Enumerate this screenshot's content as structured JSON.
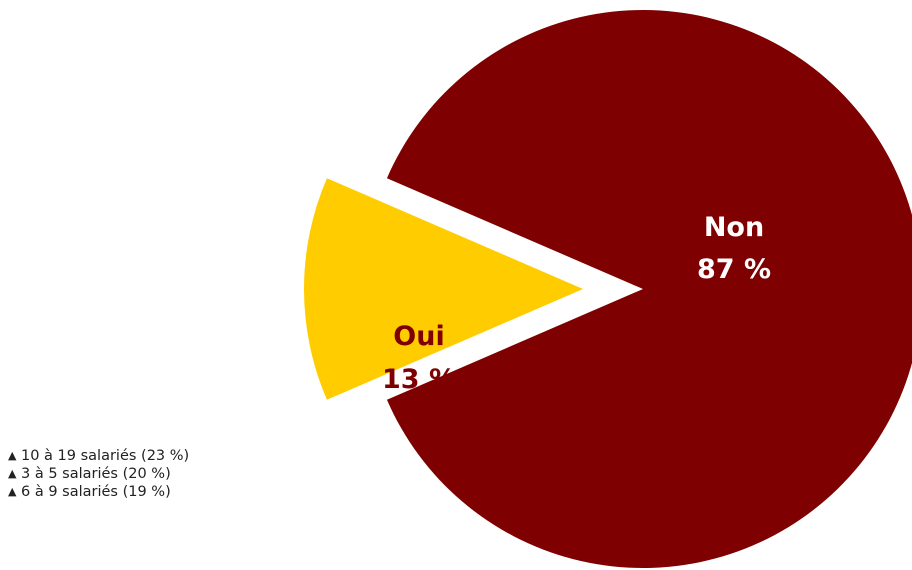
{
  "chart_data": {
    "type": "pie",
    "title": "",
    "slices": [
      {
        "label": "Non",
        "value": 87,
        "value_label": "87 %",
        "color": "#7f0000",
        "text_color": "#ffffff",
        "exploded": false
      },
      {
        "label": "Oui",
        "value": 13,
        "value_label": "13 %",
        "color": "#ffcc00",
        "text_color": "#7f0000",
        "exploded": true
      }
    ],
    "background": "#ffffff"
  },
  "notes": {
    "icon": "triangle-up-icon",
    "items": [
      {
        "text": "10 à 19 salariés (23 %)"
      },
      {
        "text": "3 à 5 salariés (20 %)"
      },
      {
        "text": "6 à 9 salariés (19 %)"
      }
    ]
  }
}
